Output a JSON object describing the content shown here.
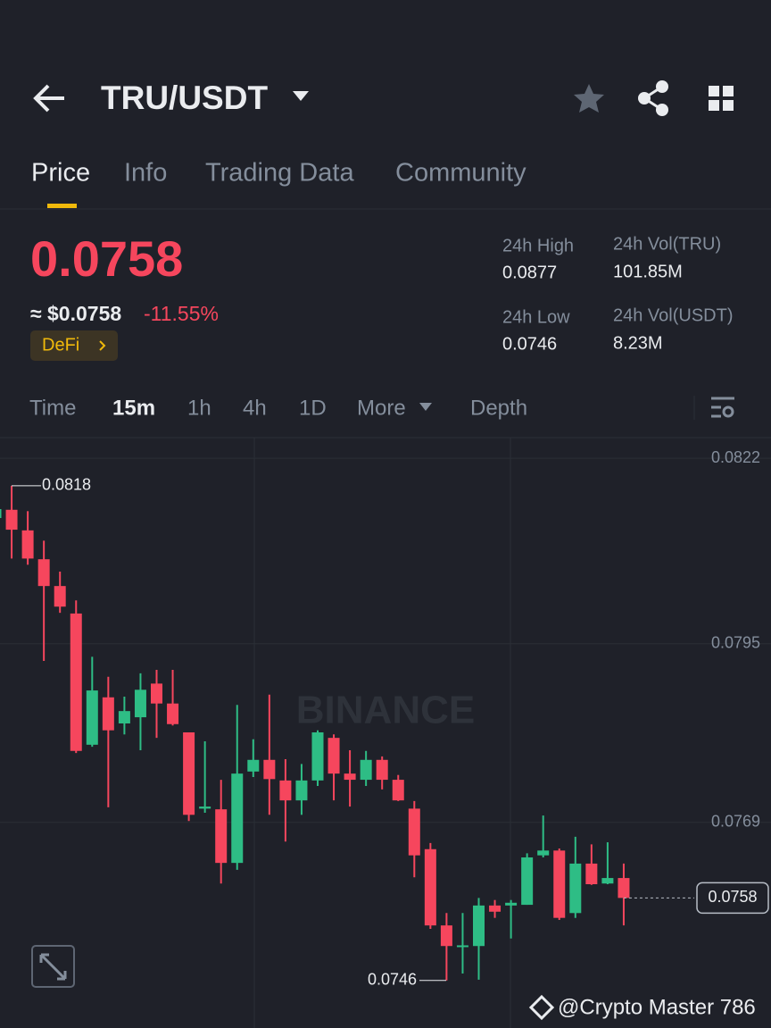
{
  "header": {
    "pair": "TRU/USDT"
  },
  "tabs": [
    "Price",
    "Info",
    "Trading Data",
    "Community"
  ],
  "ticker": {
    "price": "0.0758",
    "approx": "≈ $0.0758",
    "change": "-11.55%",
    "tag": "DeFi",
    "stats": [
      {
        "label": "24h High",
        "value": "0.0877"
      },
      {
        "label": "24h Vol(TRU)",
        "value": "101.85M"
      },
      {
        "label": "24h Low",
        "value": "0.0746"
      },
      {
        "label": "24h Vol(USDT)",
        "value": "8.23M"
      }
    ]
  },
  "intervals": [
    "Time",
    "15m",
    "1h",
    "4h",
    "1D",
    "More",
    "Depth"
  ],
  "chart_data": {
    "type": "candlestick",
    "watermark": "BINANCE",
    "ylim": [
      0.07405,
      0.0825
    ],
    "yticks": [
      0.0822,
      0.0795,
      0.0769
    ],
    "grid": true,
    "up_color": "#2ebd85",
    "down_color": "#f6465d",
    "series": [
      {
        "open": [
          0.08133,
          0.08145,
          0.08115,
          0.08073,
          0.08034,
          0.07994,
          0.07803,
          0.07872,
          0.07834,
          0.07843,
          0.07892,
          0.07863,
          0.07821,
          0.0771,
          0.07709,
          0.07631,
          0.07764,
          0.07781,
          0.07751,
          0.07722,
          0.07751,
          0.07813,
          0.07761,
          0.07752,
          0.07781,
          0.07752,
          0.0771,
          0.07651,
          0.0754,
          0.07509,
          0.0751,
          0.07569,
          0.07569,
          0.0757,
          0.07642,
          0.07649,
          0.07558,
          0.0763,
          0.07601,
          0.07609
        ],
        "high": [
          0.08152,
          0.0818,
          0.08143,
          0.081,
          0.08055,
          0.08013,
          0.07931,
          0.07902,
          0.07873,
          0.07907,
          0.07912,
          0.07912,
          0.07821,
          0.07808,
          0.07752,
          0.07861,
          0.07811,
          0.07876,
          0.07782,
          0.07775,
          0.07824,
          0.07818,
          0.07795,
          0.07794,
          0.07786,
          0.07759,
          0.07721,
          0.0766,
          0.07558,
          0.07558,
          0.0758,
          0.07577,
          0.07577,
          0.07645,
          0.077,
          0.07652,
          0.07669,
          0.07658,
          0.07661,
          0.0763
        ],
        "low": [
          0.08126,
          0.08074,
          0.08065,
          0.07925,
          0.07995,
          0.07791,
          0.078,
          0.07712,
          0.07818,
          0.07795,
          0.07813,
          0.07831,
          0.07692,
          0.07704,
          0.07601,
          0.07621,
          0.07756,
          0.07701,
          0.07662,
          0.07701,
          0.07743,
          0.07722,
          0.07713,
          0.07743,
          0.07738,
          0.07721,
          0.0761,
          0.07535,
          0.0746,
          0.0747,
          0.07461,
          0.07551,
          0.07521,
          0.0757,
          0.07639,
          0.07548,
          0.07551,
          0.07599,
          0.076,
          0.0754
        ],
        "close": [
          0.08146,
          0.08116,
          0.08074,
          0.08034,
          0.08004,
          0.07794,
          0.07882,
          0.07824,
          0.07852,
          0.07883,
          0.07863,
          0.07833,
          0.07701,
          0.07713,
          0.07631,
          0.07761,
          0.07781,
          0.07753,
          0.07722,
          0.07751,
          0.07821,
          0.07761,
          0.07752,
          0.07781,
          0.07752,
          0.07722,
          0.07642,
          0.0754,
          0.0751,
          0.07511,
          0.07569,
          0.0756,
          0.07573,
          0.07639,
          0.07649,
          0.07551,
          0.0763,
          0.076,
          0.07609,
          0.0758
        ]
      }
    ],
    "annotations": [
      {
        "label": "0.0818",
        "value": 0.0818
      },
      {
        "label": "0.0746",
        "value": 0.0746
      },
      {
        "label": "0.0758",
        "value": 0.0758
      }
    ]
  },
  "footer": "@Crypto Master 786"
}
